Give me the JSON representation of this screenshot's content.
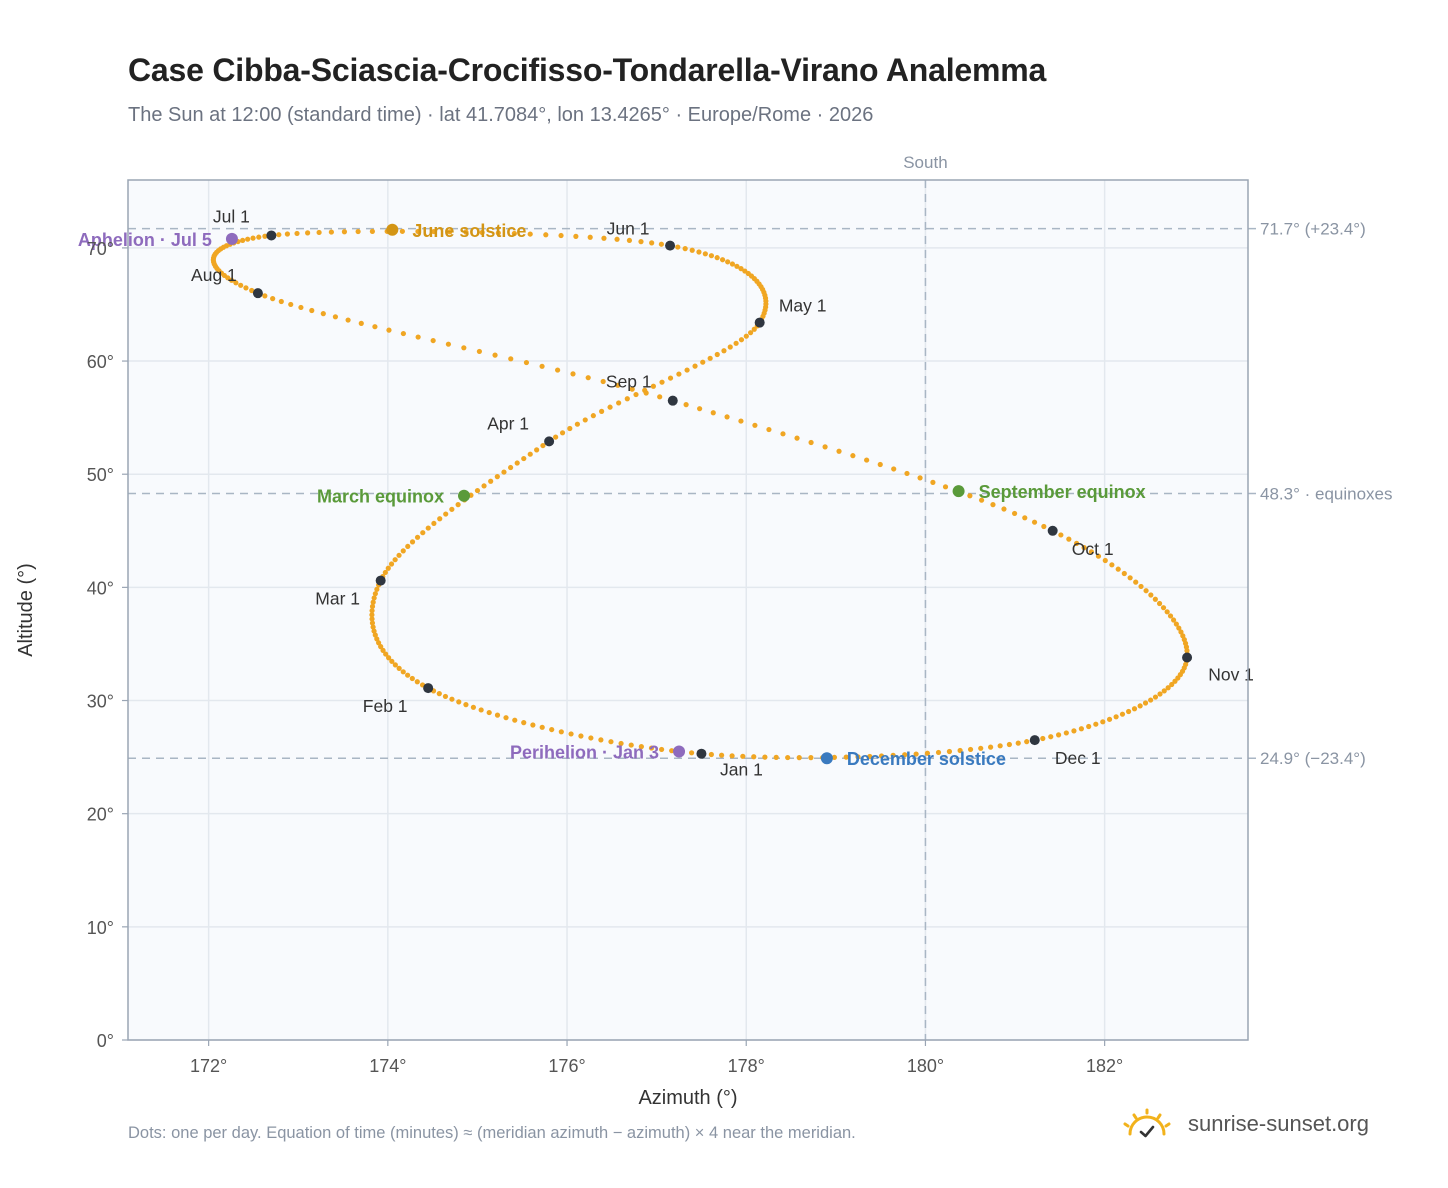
{
  "header": {
    "title": "Case Cibba-Sciascia-Crocifisso-Tondarella-Virano Analemma",
    "subtitle": "The Sun at 12:00 (standard time) · lat 41.7084°, lon 13.4265° · Europe/Rome · 2026"
  },
  "footer": {
    "note": "Dots: one per day. Equation of time (minutes) ≈ (meridian azimuth − azimuth) × 4 near the meridian.",
    "brand": "sunrise-sunset.org",
    "brand_icon": "sun-check-icon"
  },
  "colors": {
    "path": "#f0a623",
    "month_dot": "#2f3640",
    "solstice_june": "#d39515",
    "solstice_december": "#3a7abf",
    "equinox": "#5a9a3a",
    "apsis": "#8e6bbd",
    "reference_line": "#a9b6c4"
  },
  "chart_data": {
    "type": "scatter",
    "xlabel": "Azimuth (°)",
    "ylabel": "Altitude (°)",
    "xlim": [
      171.1,
      183.6
    ],
    "ylim": [
      0,
      76
    ],
    "xticks": [
      172,
      174,
      176,
      178,
      180,
      182
    ],
    "xtick_labels": [
      "172°",
      "174°",
      "176°",
      "178°",
      "180°",
      "182°"
    ],
    "yticks": [
      0,
      10,
      20,
      30,
      40,
      50,
      60,
      70
    ],
    "ytick_labels": [
      "0°",
      "10°",
      "20°",
      "30°",
      "40°",
      "50°",
      "60°",
      "70°"
    ],
    "grid": true,
    "meridian": {
      "azimuth": 180,
      "label": "South"
    },
    "reference_lines": [
      {
        "altitude": 71.7,
        "label": "71.7° (+23.4°)"
      },
      {
        "altitude": 48.3,
        "label": "48.3° · equinoxes"
      },
      {
        "altitude": 24.9,
        "label": "24.9° (−23.4°)"
      }
    ],
    "series": [
      {
        "points": [
          [
            177.5,
            25.3
          ],
          [
            174.45,
            31.1
          ],
          [
            173.92,
            40.6
          ],
          [
            175.8,
            52.9
          ],
          [
            178.15,
            63.4
          ],
          [
            177.15,
            70.2
          ],
          [
            172.7,
            71.1
          ],
          [
            172.55,
            66.0
          ],
          [
            177.18,
            56.5
          ],
          [
            181.42,
            45.0
          ],
          [
            182.92,
            33.8
          ],
          [
            181.22,
            26.5
          ],
          [
            177.5,
            25.3
          ]
        ]
      }
    ],
    "month_markers": [
      {
        "label": "Jan 1",
        "az": 177.5,
        "alt": 25.3
      },
      {
        "label": "Feb 1",
        "az": 174.45,
        "alt": 31.1
      },
      {
        "label": "Mar 1",
        "az": 173.92,
        "alt": 40.6
      },
      {
        "label": "Apr 1",
        "az": 175.8,
        "alt": 52.9
      },
      {
        "label": "May 1",
        "az": 178.15,
        "alt": 63.4
      },
      {
        "label": "Jun 1",
        "az": 177.15,
        "alt": 70.2
      },
      {
        "label": "Jul 1",
        "az": 172.7,
        "alt": 71.1
      },
      {
        "label": "Aug 1",
        "az": 172.55,
        "alt": 66.0
      },
      {
        "label": "Sep 1",
        "az": 177.18,
        "alt": 56.5
      },
      {
        "label": "Oct 1",
        "az": 181.42,
        "alt": 45.0
      },
      {
        "label": "Nov 1",
        "az": 182.92,
        "alt": 33.8
      },
      {
        "label": "Dec 1",
        "az": 181.22,
        "alt": 26.5
      }
    ],
    "events": [
      {
        "label": "June solstice",
        "az": 174.05,
        "alt": 71.6,
        "kind": "solstice_june"
      },
      {
        "label": "December solstice",
        "az": 178.9,
        "alt": 24.9,
        "kind": "solstice_december"
      },
      {
        "label": "March equinox",
        "az": 174.85,
        "alt": 48.1,
        "kind": "equinox"
      },
      {
        "label": "September equinox",
        "az": 180.37,
        "alt": 48.5,
        "kind": "equinox"
      },
      {
        "label": "Aphelion · Jul 5",
        "az": 172.26,
        "alt": 70.8,
        "kind": "apsis"
      },
      {
        "label": "Perihelion · Jan 3",
        "az": 177.25,
        "alt": 25.5,
        "kind": "apsis"
      }
    ]
  }
}
